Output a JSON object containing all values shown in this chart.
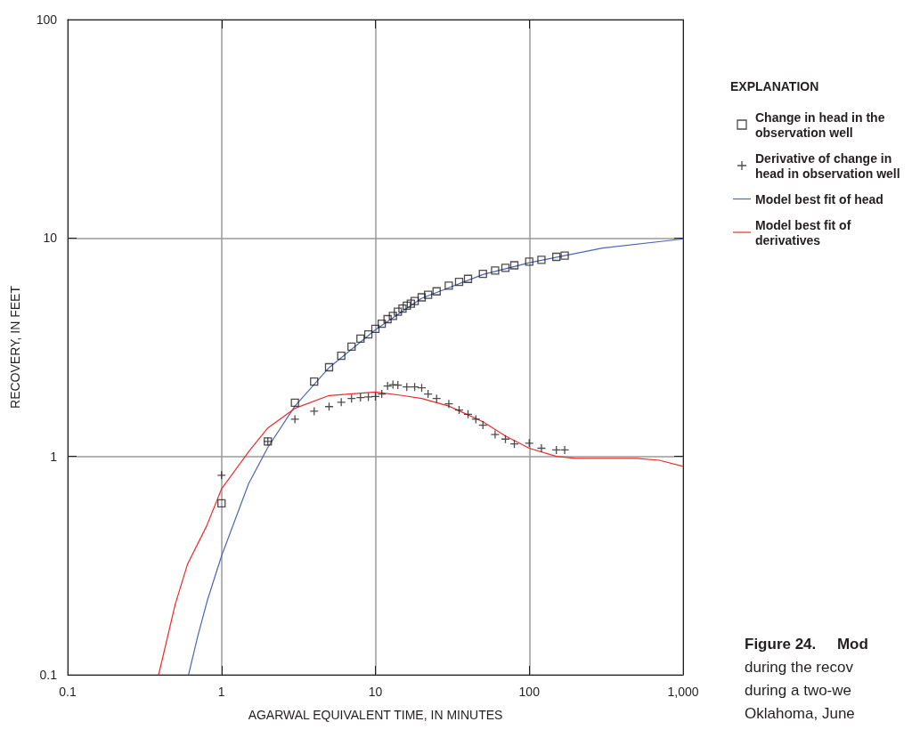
{
  "chart_data": {
    "type": "line",
    "xlabel": "AGARWAL EQUIVALENT TIME, IN MINUTES",
    "ylabel": "RECOVERY, IN FEET",
    "legend_title": "EXPLANATION",
    "log": "xy",
    "grid": true,
    "legend": "top right",
    "line_style": "solid",
    "xlim": [
      0.1,
      1000
    ],
    "xticks": [
      0.1,
      1,
      10,
      100,
      {
        "value": 1000,
        "label": "1,000"
      }
    ],
    "ylim": [
      0.1,
      100
    ],
    "yticks": [
      0.1,
      1,
      10,
      100
    ],
    "annotations": [
      "Figure 24.     Mod",
      "during the recov",
      "during a two-we",
      "Oklahoma, June"
    ],
    "series": [
      {
        "name": "Change in head in the observation well",
        "type": "scatter",
        "marker": "square",
        "color": "#231f20",
        "x": [
          1,
          2,
          3,
          4,
          5,
          6,
          7,
          8,
          9,
          10,
          11,
          12,
          13,
          14,
          15,
          16,
          17,
          18,
          20,
          22,
          25,
          30,
          35,
          40,
          50,
          60,
          70,
          80,
          100,
          120,
          150,
          170
        ],
        "values": [
          0.61,
          1.17,
          1.76,
          2.2,
          2.56,
          2.89,
          3.18,
          3.46,
          3.62,
          3.84,
          4.05,
          4.25,
          4.4,
          4.6,
          4.75,
          4.9,
          5.0,
          5.15,
          5.35,
          5.5,
          5.7,
          6.05,
          6.3,
          6.5,
          6.85,
          7.1,
          7.3,
          7.5,
          7.8,
          7.95,
          8.2,
          8.3
        ]
      },
      {
        "name": "Derivative of change in head in observation well",
        "type": "scatter",
        "marker": "cross",
        "color": "#231f20",
        "x": [
          1,
          2,
          3,
          4,
          5,
          6,
          7,
          8,
          9,
          10,
          11,
          12,
          13,
          14,
          16,
          18,
          20,
          22,
          25,
          30,
          35,
          40,
          45,
          50,
          60,
          70,
          80,
          100,
          120,
          150,
          170
        ],
        "values": [
          0.82,
          1.17,
          1.48,
          1.61,
          1.69,
          1.77,
          1.84,
          1.86,
          1.87,
          1.88,
          1.93,
          2.1,
          2.13,
          2.12,
          2.08,
          2.08,
          2.06,
          1.93,
          1.84,
          1.74,
          1.63,
          1.56,
          1.48,
          1.39,
          1.26,
          1.2,
          1.14,
          1.15,
          1.09,
          1.07,
          1.07
        ]
      },
      {
        "name": "Model best fit of head",
        "color": "#4a68b5",
        "x": [
          0.61,
          0.7,
          0.81,
          1,
          1.5,
          2,
          3,
          5,
          10,
          20,
          50,
          100,
          170,
          300,
          1000
        ],
        "values": [
          0.1,
          0.15,
          0.22,
          0.35,
          0.75,
          1.1,
          1.7,
          2.55,
          3.8,
          5.3,
          6.8,
          7.7,
          8.3,
          9.0,
          9.9
        ]
      },
      {
        "name": "Model best fit of derivatives",
        "color": "#ee2a2a",
        "x": [
          0.39,
          0.5,
          0.6,
          0.8,
          1,
          1.5,
          2,
          3,
          5,
          10,
          15,
          20,
          30,
          50,
          70,
          100,
          150,
          200,
          500,
          700,
          1000
        ],
        "values": [
          0.1,
          0.21,
          0.32,
          0.48,
          0.71,
          1.05,
          1.35,
          1.66,
          1.9,
          1.97,
          1.9,
          1.84,
          1.7,
          1.44,
          1.24,
          1.09,
          1.0,
          0.98,
          0.98,
          0.96,
          0.9
        ]
      }
    ]
  }
}
